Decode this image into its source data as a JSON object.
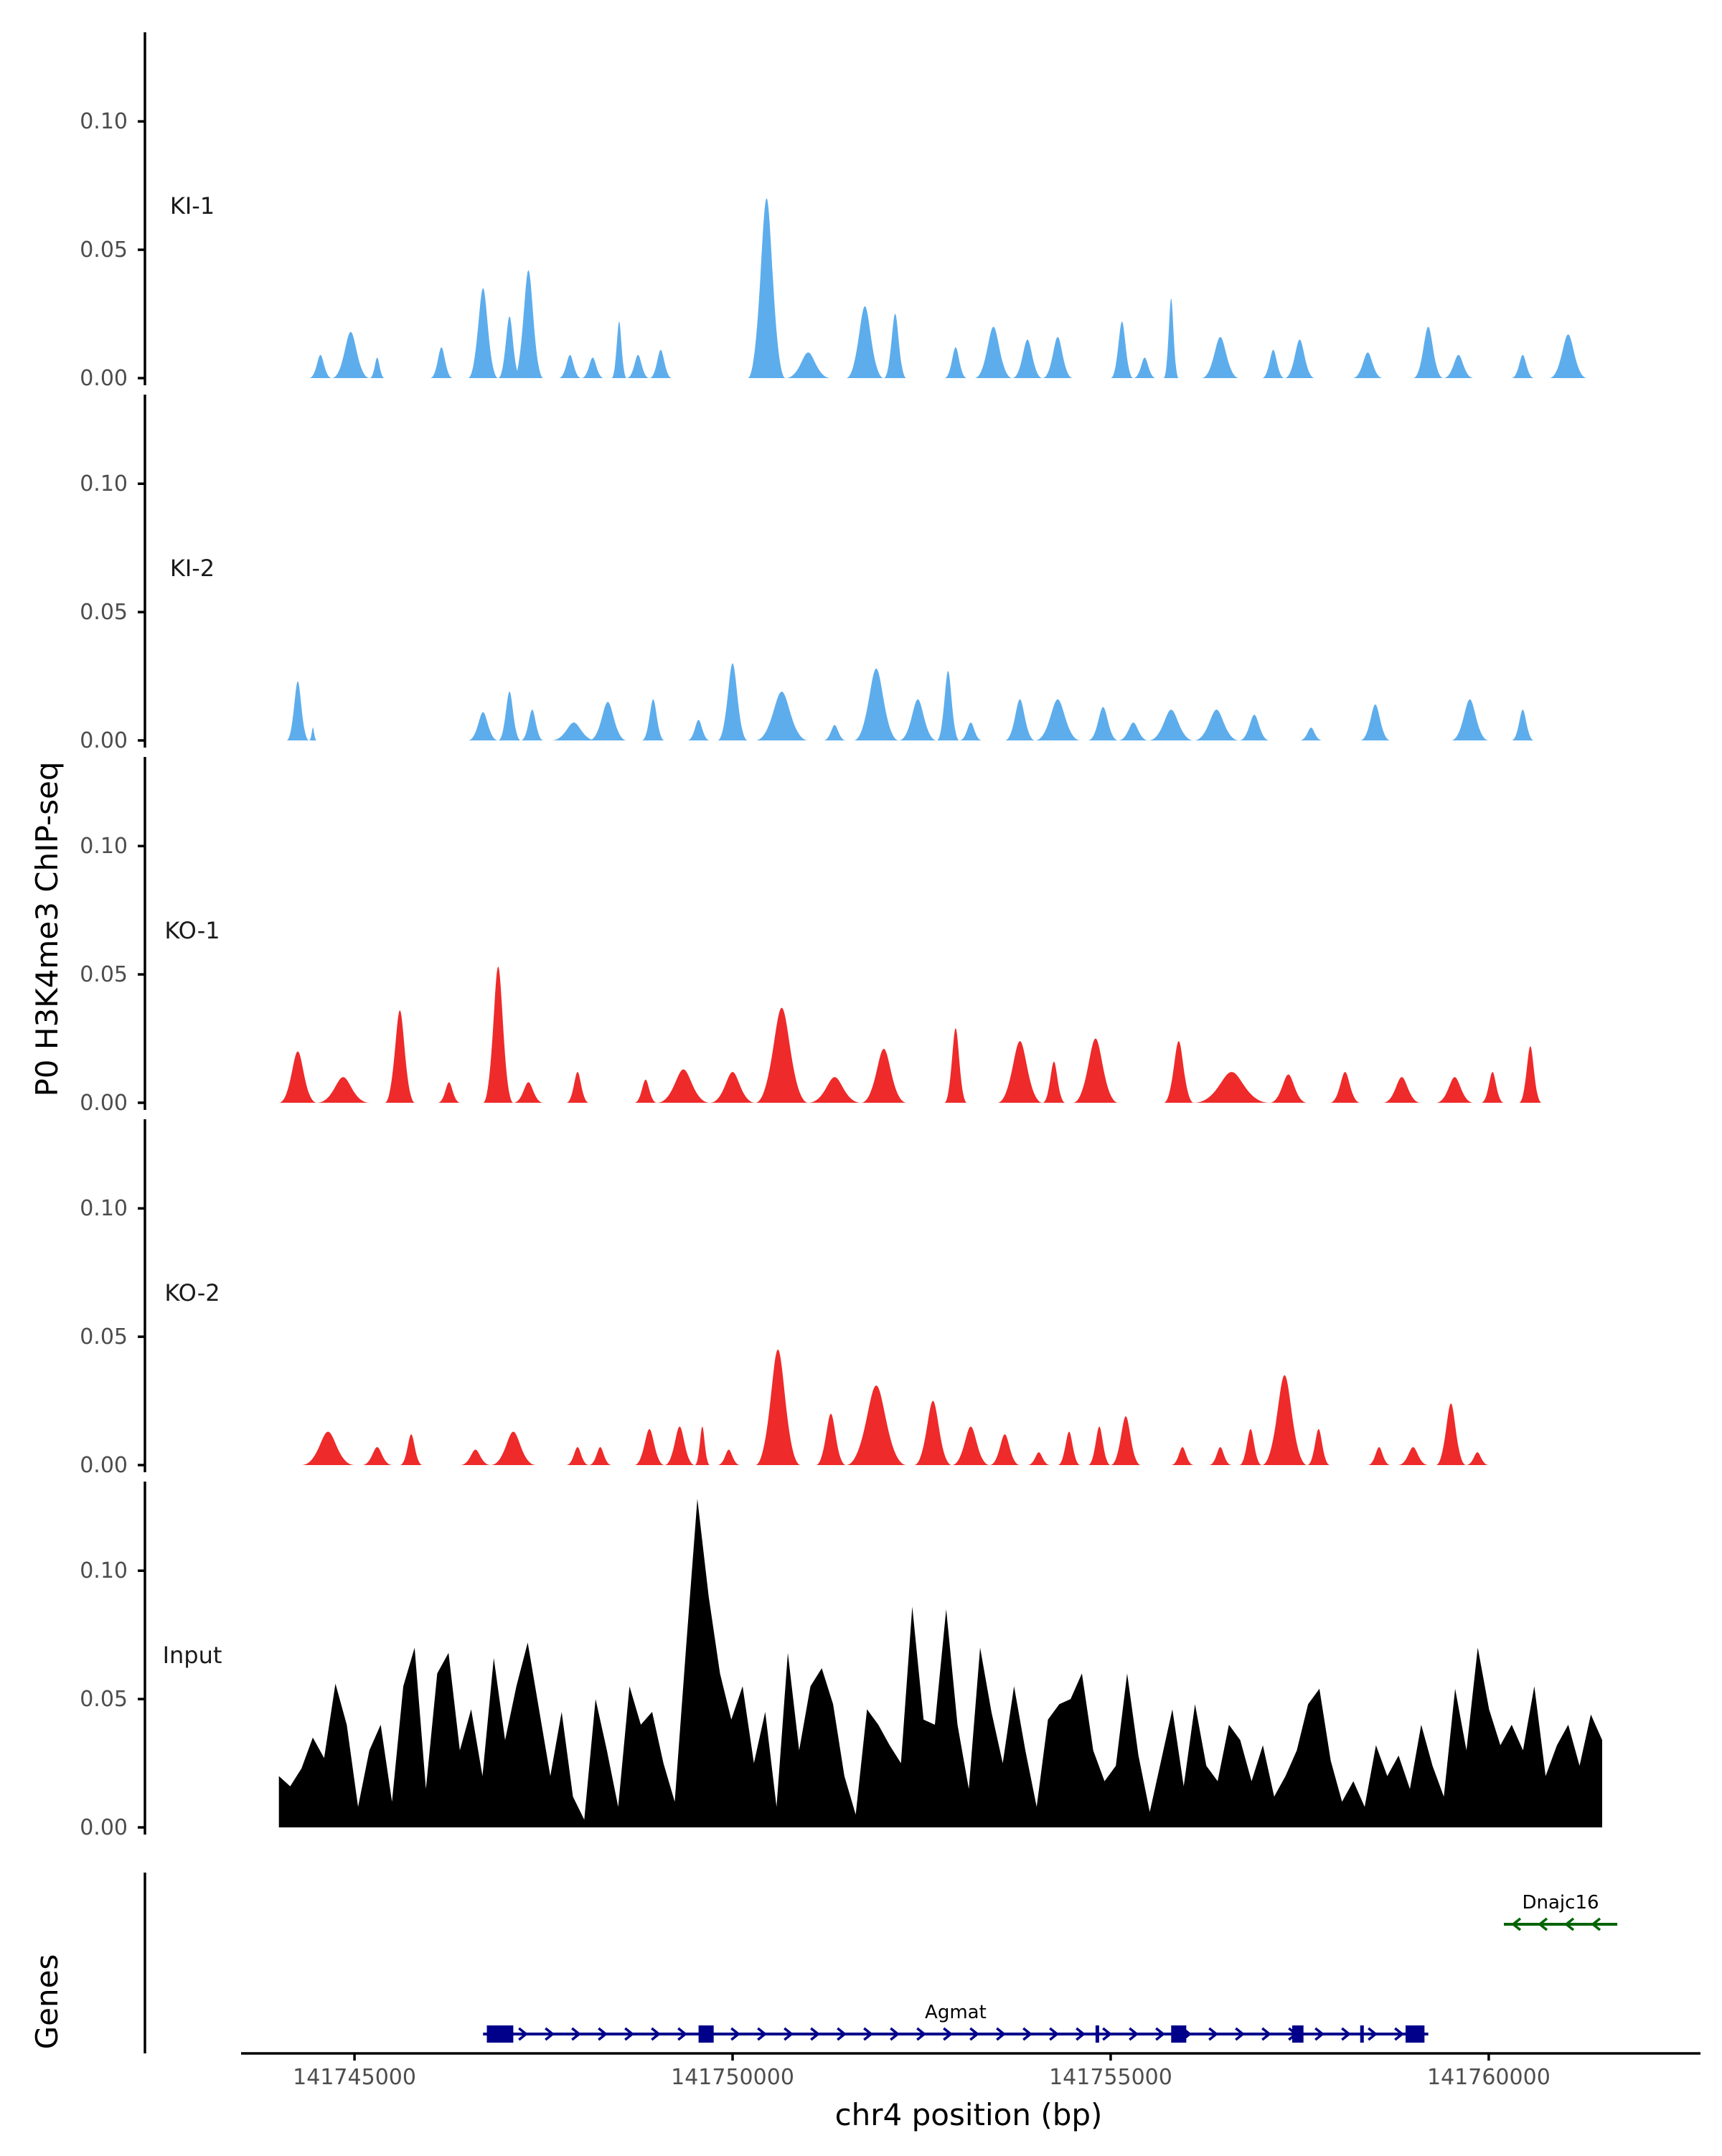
{
  "chart_data": {
    "type": "area",
    "title": "",
    "ylabel": "P0 H3K4me3 ChIP-seq",
    "xlabel": "chr4 position (bp)",
    "genes_label": "Genes",
    "xlim": [
      141743500,
      141762800
    ],
    "x_ticks": [
      141745000,
      141750000,
      141755000,
      141760000
    ],
    "x_tick_labels": [
      "141745000",
      "141750000",
      "141755000",
      "141760000"
    ],
    "ylim": [
      0,
      0.135
    ],
    "y_ticks": [
      0,
      0.05,
      0.1
    ],
    "y_tick_labels": [
      "0.00",
      "0.05",
      "0.10"
    ],
    "tracks": [
      {
        "name": "KI-1",
        "color": "#5DADEC",
        "peaks": [
          [
            141744400,
            141744700,
            0.009
          ],
          [
            141744700,
            141745200,
            0.018
          ],
          [
            141745200,
            141745400,
            0.008
          ],
          [
            141746000,
            141746300,
            0.012
          ],
          [
            141746500,
            141746900,
            0.035
          ],
          [
            141746900,
            141747200,
            0.024
          ],
          [
            141747100,
            141747500,
            0.042
          ],
          [
            141747700,
            141748000,
            0.009
          ],
          [
            141748000,
            141748300,
            0.008
          ],
          [
            141748400,
            141748600,
            0.022
          ],
          [
            141748600,
            141748900,
            0.009
          ],
          [
            141748900,
            141749200,
            0.011
          ],
          [
            141750200,
            141750700,
            0.07
          ],
          [
            141750700,
            141751300,
            0.01
          ],
          [
            141751500,
            141752000,
            0.028
          ],
          [
            141752000,
            141752300,
            0.025
          ],
          [
            141752800,
            141753100,
            0.012
          ],
          [
            141753200,
            141753700,
            0.02
          ],
          [
            141753700,
            141754100,
            0.015
          ],
          [
            141754100,
            141754500,
            0.016
          ],
          [
            141755000,
            141755300,
            0.022
          ],
          [
            141755300,
            141755600,
            0.008
          ],
          [
            141755700,
            141755900,
            0.031
          ],
          [
            141756200,
            141756700,
            0.016
          ],
          [
            141757000,
            141757300,
            0.011
          ],
          [
            141757300,
            141757700,
            0.015
          ],
          [
            141758200,
            141758600,
            0.01
          ],
          [
            141759000,
            141759400,
            0.02
          ],
          [
            141759400,
            141759800,
            0.009
          ],
          [
            141760300,
            141760600,
            0.009
          ],
          [
            141760800,
            141761300,
            0.017
          ]
        ]
      },
      {
        "name": "KI-2",
        "color": "#5DADEC",
        "peaks": [
          [
            141744100,
            141744400,
            0.023
          ],
          [
            141744400,
            141744500,
            0.005
          ],
          [
            141746500,
            141746900,
            0.011
          ],
          [
            141746900,
            141747200,
            0.019
          ],
          [
            141747200,
            141747500,
            0.012
          ],
          [
            141747600,
            141748200,
            0.007
          ],
          [
            141748100,
            141748600,
            0.015
          ],
          [
            141748800,
            141749100,
            0.016
          ],
          [
            141749400,
            141749700,
            0.008
          ],
          [
            141749800,
            141750200,
            0.03
          ],
          [
            141750300,
            141751000,
            0.019
          ],
          [
            141751200,
            141751500,
            0.006
          ],
          [
            141751600,
            141752200,
            0.028
          ],
          [
            141752200,
            141752700,
            0.016
          ],
          [
            141752700,
            141753000,
            0.027
          ],
          [
            141753000,
            141753300,
            0.007
          ],
          [
            141753600,
            141754000,
            0.016
          ],
          [
            141754000,
            141754600,
            0.016
          ],
          [
            141754700,
            141755100,
            0.013
          ],
          [
            141755100,
            141755500,
            0.007
          ],
          [
            141755500,
            141756100,
            0.012
          ],
          [
            141756100,
            141756700,
            0.012
          ],
          [
            141756700,
            141757100,
            0.01
          ],
          [
            141757500,
            141757800,
            0.005
          ],
          [
            141758300,
            141758700,
            0.014
          ],
          [
            141759500,
            141760000,
            0.016
          ],
          [
            141760300,
            141760600,
            0.012
          ]
        ]
      },
      {
        "name": "KO-1",
        "color": "#EE2A2A",
        "peaks": [
          [
            141744000,
            141744500,
            0.02
          ],
          [
            141744500,
            141745200,
            0.01
          ],
          [
            141745400,
            141745800,
            0.036
          ],
          [
            141746100,
            141746400,
            0.008
          ],
          [
            141746700,
            141747100,
            0.053
          ],
          [
            141747100,
            141747500,
            0.008
          ],
          [
            141747800,
            141748100,
            0.012
          ],
          [
            141748700,
            141749000,
            0.009
          ],
          [
            141749000,
            141749700,
            0.013
          ],
          [
            141749700,
            141750300,
            0.012
          ],
          [
            141750300,
            141751000,
            0.037
          ],
          [
            141751000,
            141751700,
            0.01
          ],
          [
            141751700,
            141752300,
            0.021
          ],
          [
            141752800,
            141753100,
            0.029
          ],
          [
            141753500,
            141754100,
            0.024
          ],
          [
            141754100,
            141754400,
            0.016
          ],
          [
            141754500,
            141755100,
            0.025
          ],
          [
            141755700,
            141756100,
            0.024
          ],
          [
            141756100,
            141757100,
            0.012
          ],
          [
            141757100,
            141757600,
            0.011
          ],
          [
            141757900,
            141758300,
            0.012
          ],
          [
            141758600,
            141759100,
            0.01
          ],
          [
            141759300,
            141759800,
            0.01
          ],
          [
            141759900,
            141760200,
            0.012
          ],
          [
            141760400,
            141760700,
            0.022
          ]
        ]
      },
      {
        "name": "KO-2",
        "color": "#EE2A2A",
        "peaks": [
          [
            141744300,
            141745000,
            0.013
          ],
          [
            141745100,
            141745500,
            0.007
          ],
          [
            141745600,
            141745900,
            0.012
          ],
          [
            141746400,
            141746800,
            0.006
          ],
          [
            141746800,
            141747400,
            0.013
          ],
          [
            141747800,
            141748100,
            0.007
          ],
          [
            141748100,
            141748400,
            0.007
          ],
          [
            141748700,
            141749100,
            0.014
          ],
          [
            141749100,
            141749500,
            0.015
          ],
          [
            141749500,
            141749700,
            0.015
          ],
          [
            141749800,
            141750100,
            0.006
          ],
          [
            141750300,
            141750900,
            0.045
          ],
          [
            141751100,
            141751500,
            0.02
          ],
          [
            141751500,
            141752300,
            0.031
          ],
          [
            141752400,
            141752900,
            0.025
          ],
          [
            141752900,
            141753400,
            0.015
          ],
          [
            141753400,
            141753800,
            0.012
          ],
          [
            141753900,
            141754200,
            0.005
          ],
          [
            141754300,
            141754600,
            0.013
          ],
          [
            141754700,
            141755000,
            0.015
          ],
          [
            141755000,
            141755400,
            0.019
          ],
          [
            141755800,
            141756100,
            0.007
          ],
          [
            141756300,
            141756600,
            0.007
          ],
          [
            141756700,
            141757000,
            0.014
          ],
          [
            141757000,
            141757600,
            0.035
          ],
          [
            141757600,
            141757900,
            0.014
          ],
          [
            141758400,
            141758700,
            0.007
          ],
          [
            141758800,
            141759200,
            0.007
          ],
          [
            141759300,
            141759700,
            0.024
          ],
          [
            141759700,
            141760000,
            0.005
          ]
        ]
      },
      {
        "name": "Input",
        "color": "#000000",
        "x_start": 141744000,
        "x_end": 141761500,
        "values": [
          0.02,
          0.016,
          0.023,
          0.035,
          0.027,
          0.056,
          0.04,
          0.008,
          0.03,
          0.04,
          0.01,
          0.055,
          0.07,
          0.015,
          0.06,
          0.068,
          0.03,
          0.046,
          0.02,
          0.066,
          0.034,
          0.055,
          0.072,
          0.046,
          0.02,
          0.045,
          0.012,
          0.003,
          0.05,
          0.03,
          0.008,
          0.055,
          0.04,
          0.045,
          0.025,
          0.01,
          0.07,
          0.128,
          0.09,
          0.06,
          0.042,
          0.055,
          0.025,
          0.045,
          0.008,
          0.068,
          0.03,
          0.055,
          0.062,
          0.048,
          0.02,
          0.005,
          0.046,
          0.04,
          0.032,
          0.025,
          0.086,
          0.042,
          0.04,
          0.085,
          0.04,
          0.015,
          0.07,
          0.045,
          0.025,
          0.055,
          0.03,
          0.008,
          0.042,
          0.048,
          0.05,
          0.06,
          0.03,
          0.018,
          0.024,
          0.06,
          0.028,
          0.006,
          0.026,
          0.046,
          0.016,
          0.048,
          0.024,
          0.018,
          0.04,
          0.034,
          0.018,
          0.032,
          0.012,
          0.02,
          0.03,
          0.048,
          0.054,
          0.026,
          0.01,
          0.018,
          0.008,
          0.032,
          0.02,
          0.028,
          0.015,
          0.04,
          0.024,
          0.012,
          0.054,
          0.03,
          0.07,
          0.046,
          0.032,
          0.04,
          0.03,
          0.055,
          0.02,
          0.032,
          0.04,
          0.024,
          0.044,
          0.034
        ]
      }
    ],
    "genes": [
      {
        "name": "Agmat",
        "color": "#00008B",
        "strand": "+",
        "start": 141746700,
        "end": 141759200,
        "exons": [
          [
            141746750,
            141747100
          ],
          [
            141749550,
            141749750
          ],
          [
            141754800,
            141754840
          ],
          [
            141755800,
            141756000
          ],
          [
            141757400,
            141757550
          ],
          [
            141758300,
            141758340
          ],
          [
            141758900,
            141759150
          ]
        ]
      },
      {
        "name": "Dnajc16",
        "color": "#006400",
        "strand": "-",
        "start": 141760200,
        "end": 141761700,
        "exons": []
      }
    ]
  }
}
